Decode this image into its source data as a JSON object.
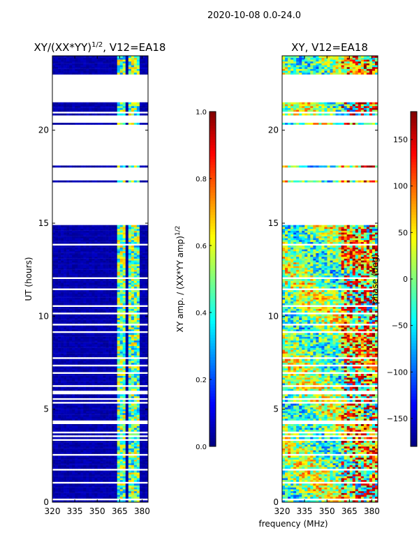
{
  "figure_title": "2020-10-08 0.0-24.0",
  "chart_data": [
    {
      "type": "heatmap",
      "title": "XY/(XX*YY)",
      "title_superscript": "1/2",
      "title_suffix": ", V12=EA18",
      "xlabel": "",
      "ylabel": "UT (hours)",
      "xlim": [
        320,
        384
      ],
      "ylim": [
        0,
        24
      ],
      "xticks": [
        320,
        335,
        350,
        365,
        380
      ],
      "yticks": [
        0,
        5,
        10,
        15,
        20
      ],
      "bright_band_mhz": [
        363,
        378
      ],
      "colorbar": {
        "label": "XY amp. / (XX*YY amp)",
        "label_superscript": "1/2",
        "ticks": [
          "0.0",
          "0.2",
          "0.4",
          "0.6",
          "0.8",
          "1.0"
        ],
        "tick_values": [
          0,
          0.2,
          0.4,
          0.6,
          0.8,
          1.0
        ],
        "range": [
          0,
          1
        ],
        "colormap": "jet"
      }
    },
    {
      "type": "heatmap",
      "title": "XY, V12=EA18",
      "xlabel": "frequency (MHz)",
      "ylabel": "",
      "xlim": [
        320,
        384
      ],
      "ylim": [
        0,
        24
      ],
      "xticks": [
        320,
        335,
        350,
        365,
        380
      ],
      "yticks": [
        0,
        5,
        10,
        15,
        20
      ],
      "colorbar": {
        "label": "phase (deg)",
        "ticks": [
          "150",
          "100",
          "50",
          "0",
          "−50",
          "−100",
          "−150"
        ],
        "tick_values": [
          150,
          100,
          50,
          0,
          -50,
          -100,
          -150
        ],
        "range": [
          -180,
          180
        ],
        "colormap": "jet"
      }
    }
  ],
  "colors": {
    "jet": [
      "#00007f",
      "#0000ff",
      "#007fff",
      "#00ffff",
      "#7fff7f",
      "#ffff00",
      "#ff7f00",
      "#ff0000",
      "#7f0000"
    ],
    "background": "#ffffff",
    "axes": "#000000"
  }
}
